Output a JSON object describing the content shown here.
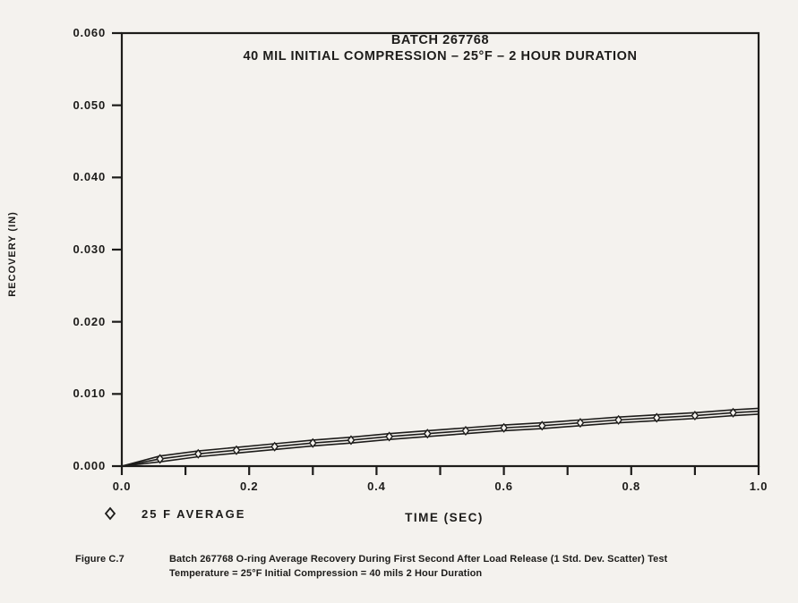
{
  "colors": {
    "ink": "#1d1c1a",
    "paper": "#f4f2ee"
  },
  "chart_data": {
    "type": "line",
    "title": "BATCH 267768 — 40 MIL INITIAL COMPRESSION – 25°F – 2 HOUR DURATION",
    "title_line1": "BATCH 267768",
    "title_line2": "40 MIL INITIAL COMPRESSION – 25°F – 2 HOUR DURATION",
    "xlabel": "TIME (SEC)",
    "ylabel": "RECOVERY (IN)",
    "xlim": [
      0.0,
      1.0
    ],
    "ylim": [
      0.0,
      0.06
    ],
    "x_minor_tick_step": 0.1,
    "x_tick_labels": [
      "0.0",
      "0.2",
      "0.4",
      "0.6",
      "0.8",
      "1.0"
    ],
    "x_tick_values": [
      0.0,
      0.2,
      0.4,
      0.6,
      0.8,
      1.0
    ],
    "y_tick_labels": [
      "0.000",
      "0.010",
      "0.020",
      "0.030",
      "0.040",
      "0.050",
      "0.060"
    ],
    "y_tick_values": [
      0.0,
      0.01,
      0.02,
      0.03,
      0.04,
      0.05,
      0.06
    ],
    "grid": false,
    "legend_position": "below-left",
    "legend": [
      {
        "marker": "diamond",
        "label": "25 F AVERAGE"
      }
    ],
    "x": [
      0.0,
      0.06,
      0.12,
      0.18,
      0.24,
      0.3,
      0.36,
      0.42,
      0.48,
      0.54,
      0.6,
      0.66,
      0.72,
      0.78,
      0.84,
      0.9,
      0.96,
      1.0
    ],
    "series": [
      {
        "name": "25 F AVERAGE",
        "markers": "diamond",
        "values": [
          0.0,
          0.001,
          0.0017,
          0.0022,
          0.0027,
          0.0032,
          0.0036,
          0.0041,
          0.0045,
          0.0049,
          0.0053,
          0.0056,
          0.006,
          0.0064,
          0.0067,
          0.007,
          0.0074,
          0.0076
        ]
      },
      {
        "name": "+1 std dev scatter",
        "markers": "none",
        "values": [
          0.0,
          0.0014,
          0.0021,
          0.0026,
          0.0031,
          0.0036,
          0.004,
          0.0045,
          0.0049,
          0.0053,
          0.0057,
          0.006,
          0.0064,
          0.0068,
          0.0071,
          0.0074,
          0.0078,
          0.008
        ]
      },
      {
        "name": "-1 std dev scatter",
        "markers": "none",
        "values": [
          0.0,
          0.0006,
          0.0013,
          0.0018,
          0.0023,
          0.0028,
          0.0032,
          0.0037,
          0.0041,
          0.0045,
          0.0049,
          0.0052,
          0.0056,
          0.006,
          0.0063,
          0.0066,
          0.007,
          0.0072
        ]
      }
    ]
  },
  "caption": {
    "label": "Figure C.7",
    "line1": "Batch 267768 O-ring Average Recovery During First Second After Load Release (1 Std. Dev. Scatter) Test",
    "line2": "Temperature  =  25°F Initial Compression  =  40 mils 2 Hour Duration"
  }
}
